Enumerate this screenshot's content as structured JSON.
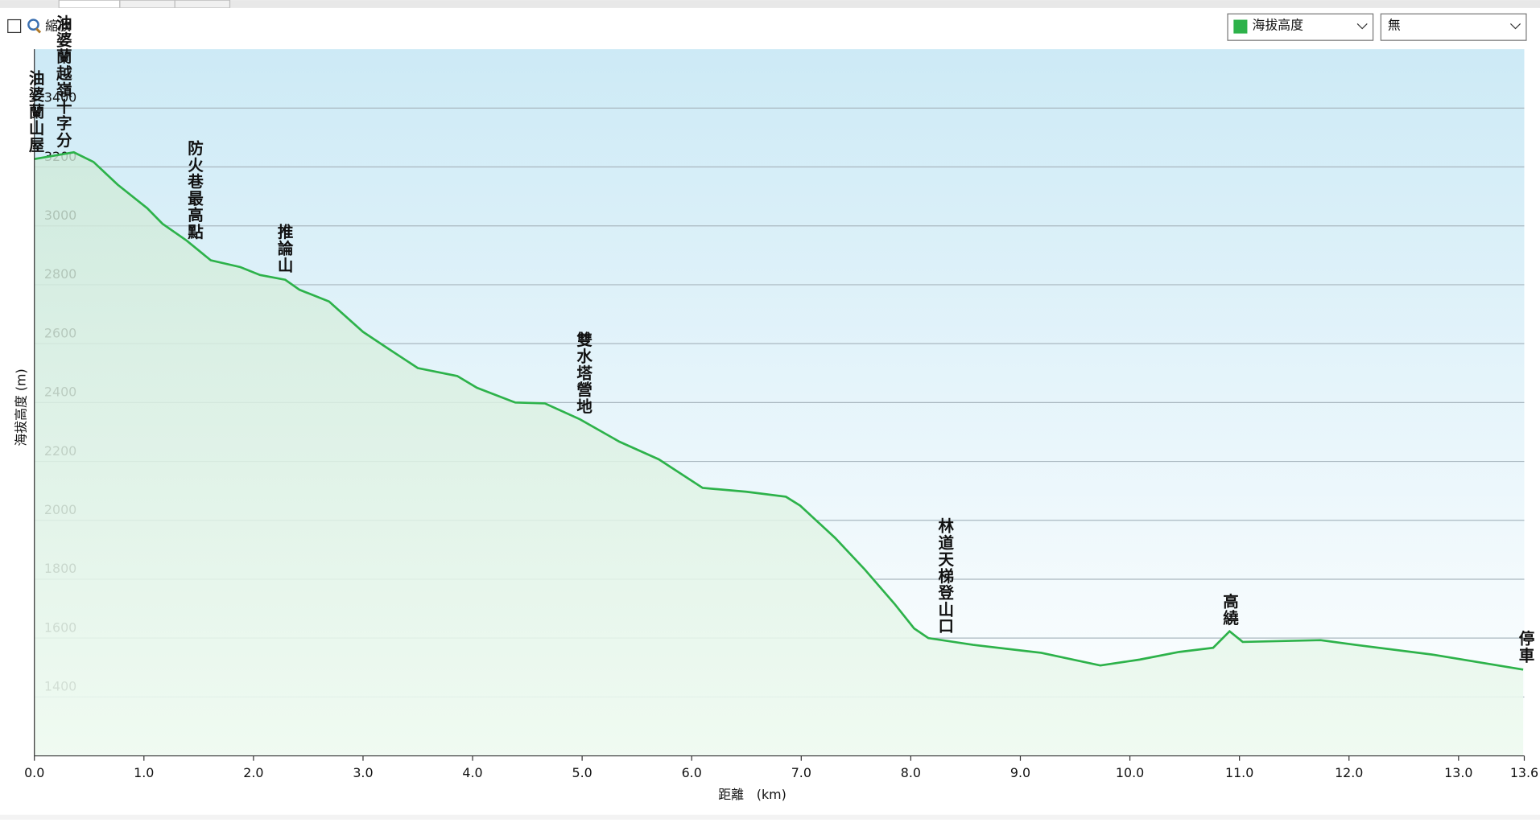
{
  "ui": {
    "zoom_label": "縮放",
    "series_select": "海拔高度",
    "second_select": "無"
  },
  "chart_data": {
    "type": "line",
    "x_label": "距離　(km)",
    "y_label": "海拔高度 (m)",
    "xlim": [
      0,
      13.6
    ],
    "ylim": [
      1200,
      3600
    ],
    "xticks": [
      {
        "value": 0,
        "label": "0.0"
      },
      {
        "value": 1,
        "label": "1.0"
      },
      {
        "value": 2,
        "label": "2.0"
      },
      {
        "value": 3,
        "label": "3.0"
      },
      {
        "value": 4,
        "label": "4.0"
      },
      {
        "value": 5,
        "label": "5.0"
      },
      {
        "value": 6,
        "label": "6.0"
      },
      {
        "value": 7,
        "label": "7.0"
      },
      {
        "value": 8,
        "label": "8.0"
      },
      {
        "value": 9,
        "label": "9.0"
      },
      {
        "value": 10,
        "label": "10.0"
      },
      {
        "value": 11,
        "label": "11.0"
      },
      {
        "value": 12,
        "label": "12.0"
      },
      {
        "value": 13,
        "label": "13.0"
      },
      13.6
    ],
    "yticks": [
      1400,
      1600,
      1800,
      2000,
      2200,
      2400,
      2600,
      2800,
      3000,
      3200,
      3400
    ],
    "grid": true,
    "x": [
      0,
      0.36,
      0.54,
      0.76,
      1.03,
      1.17,
      1.39,
      1.61,
      1.88,
      2.06,
      2.29,
      2.42,
      2.69,
      3.0,
      3.23,
      3.5,
      3.86,
      4.04,
      4.39,
      4.66,
      4.98,
      5.34,
      5.7,
      6.1,
      6.5,
      6.86,
      6.99,
      7.31,
      7.58,
      7.85,
      8.03,
      8.16,
      8.57,
      9.19,
      9.73,
      10.09,
      10.45,
      10.76,
      10.91,
      11.03,
      11.74,
      12.06,
      12.78,
      13.59
    ],
    "series": [
      {
        "name": "海拔高度",
        "color": "#2db24a",
        "values": [
          3227,
          3250,
          3217,
          3140,
          3060,
          3007,
          2950,
          2883,
          2860,
          2833,
          2817,
          2783,
          2743,
          2640,
          2583,
          2517,
          2490,
          2450,
          2400,
          2397,
          2343,
          2267,
          2207,
          2110,
          2097,
          2080,
          2050,
          1940,
          1833,
          1717,
          1633,
          1600,
          1577,
          1550,
          1507,
          1527,
          1553,
          1567,
          1623,
          1587,
          1593,
          1577,
          1543,
          1493
        ]
      }
    ],
    "annotations": [
      {
        "text": "油婆蘭山屋",
        "x": 0
      },
      {
        "text": "油婆蘭越嶺十字分",
        "x": 0.25
      },
      {
        "text": "防火巷最高點",
        "x": 1.45
      },
      {
        "text": "推論山",
        "x": 2.27
      },
      {
        "text": "雙水塔營地",
        "x": 5.0
      },
      {
        "text": "林道天梯登山口",
        "x": 8.3
      },
      {
        "text": "高繞",
        "x": 10.9
      },
      {
        "text": "停車",
        "x": 13.6
      }
    ],
    "annotation_color": "#ff0000"
  }
}
